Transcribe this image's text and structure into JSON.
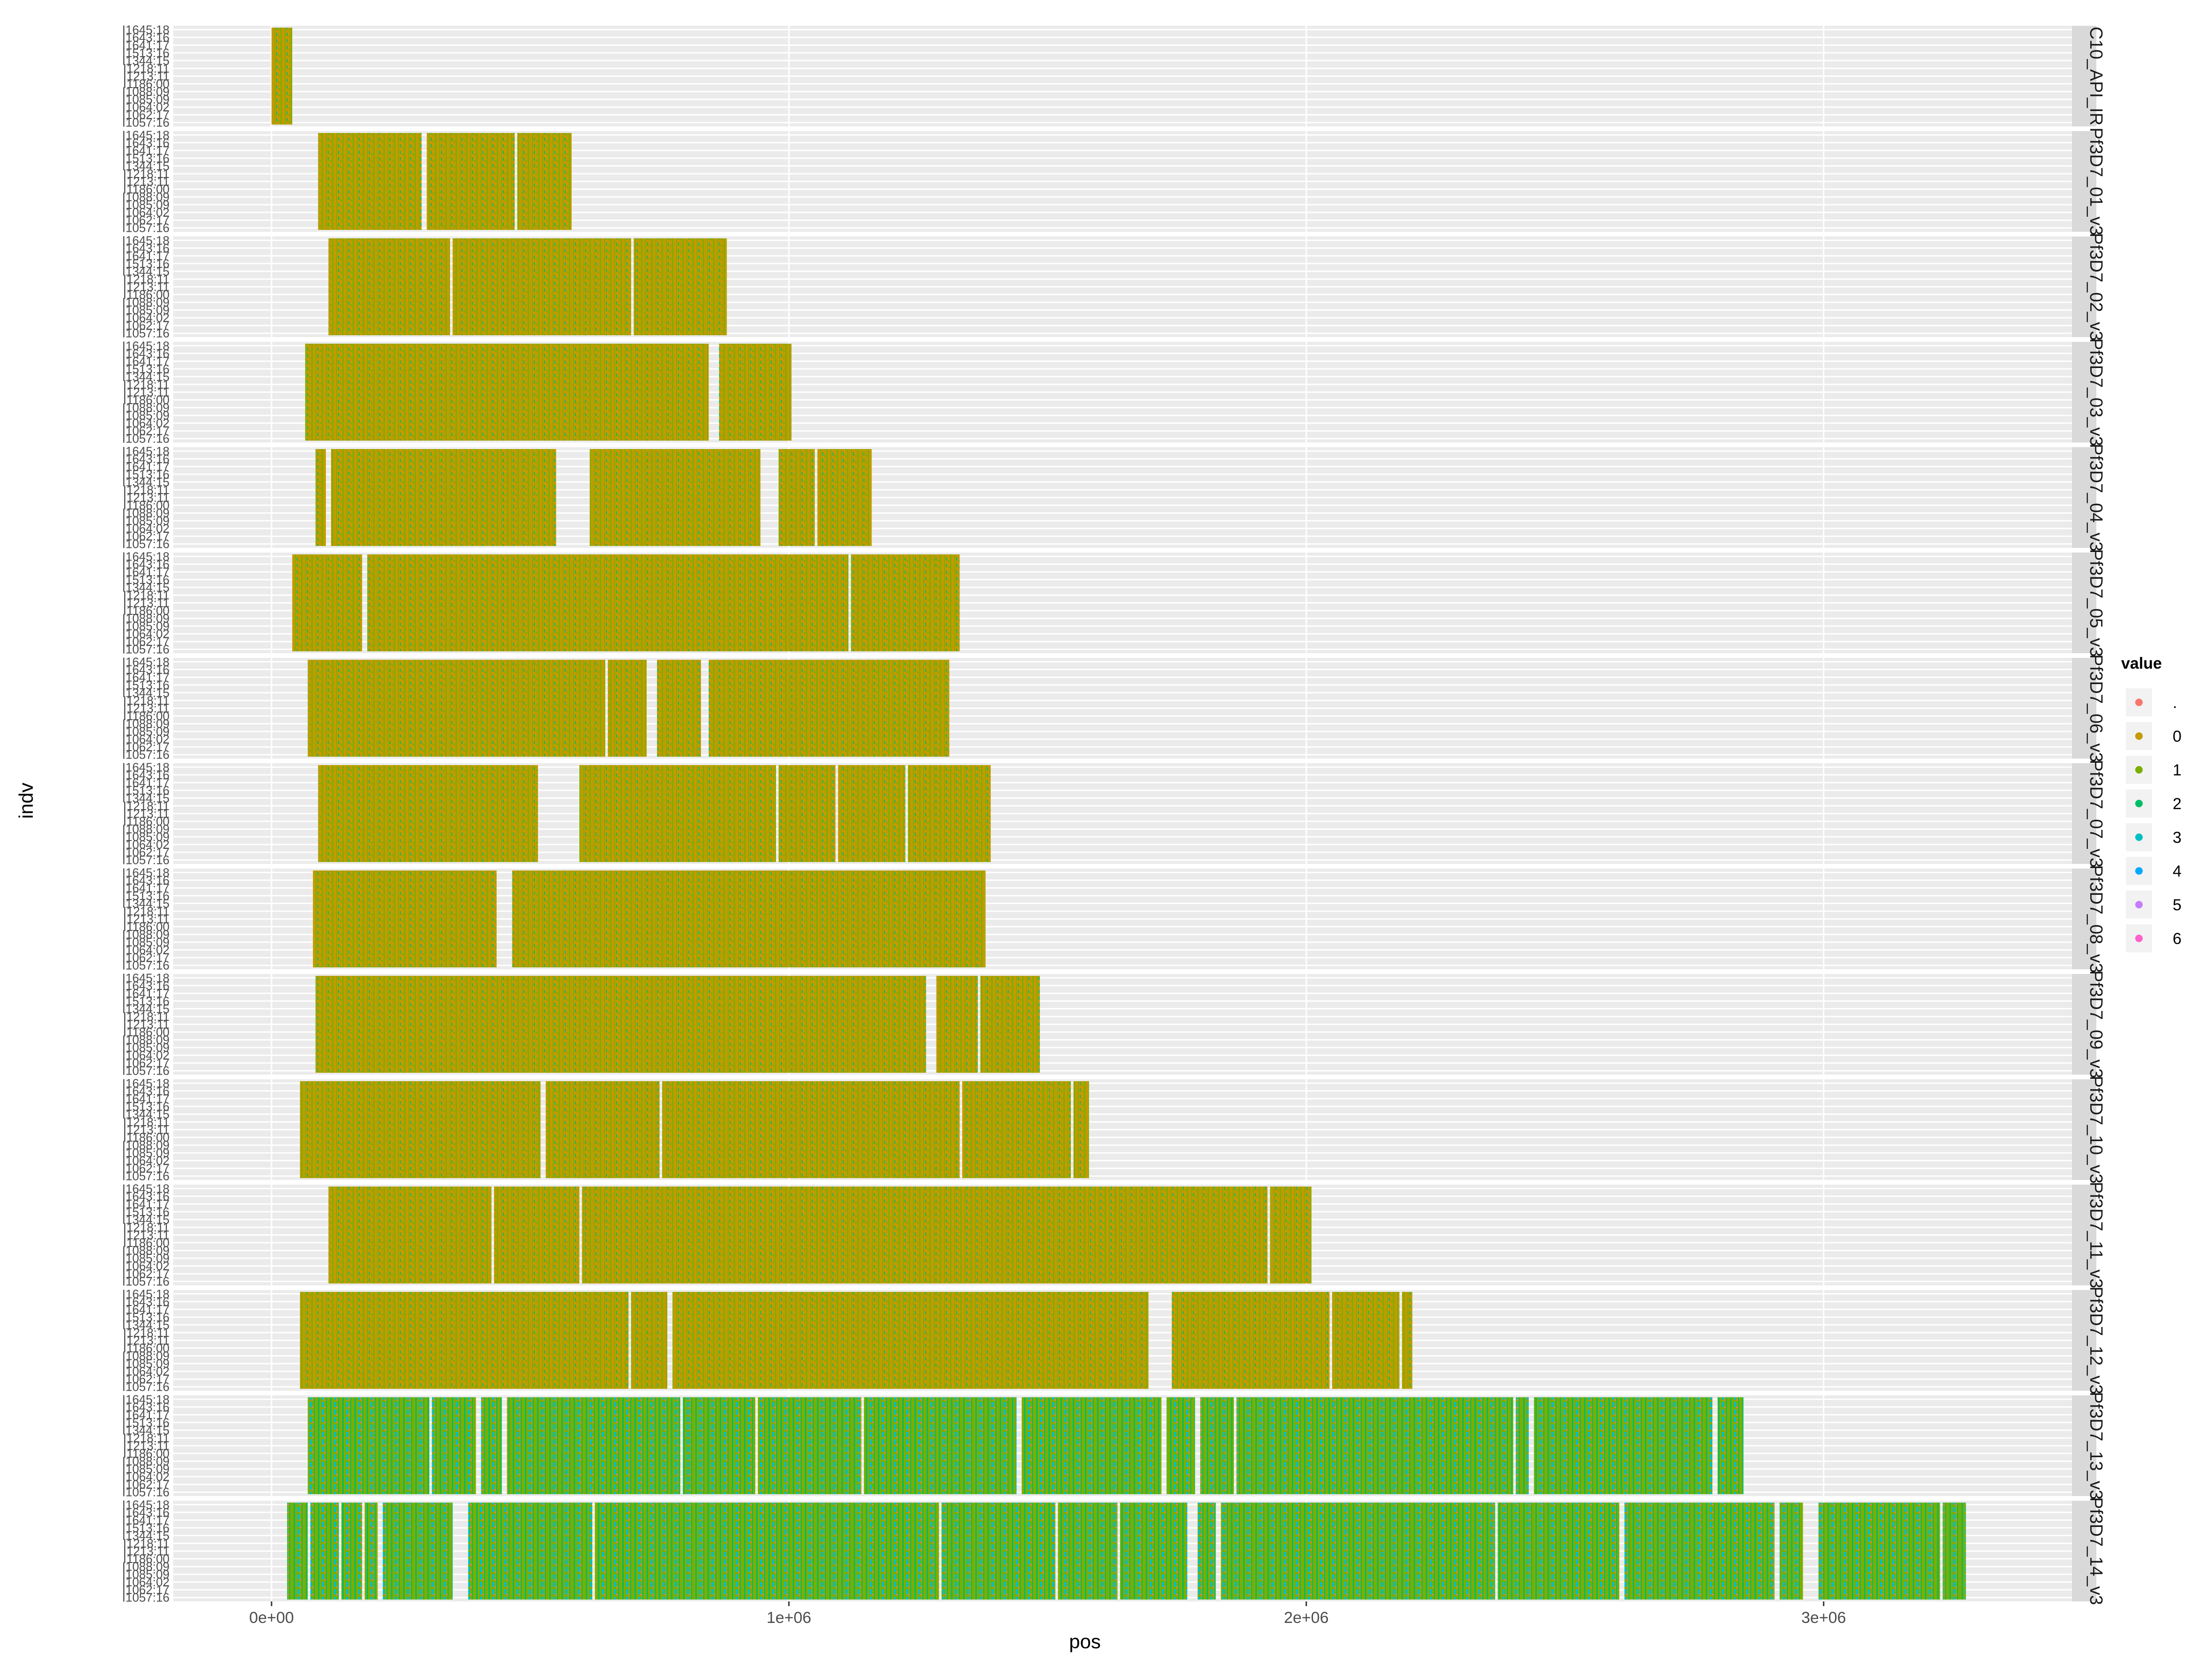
{
  "chart_data": {
    "type": "scatter",
    "title": "",
    "xlabel": "pos",
    "ylabel": "indv",
    "xlim": [
      -190000,
      3480000
    ],
    "x_ticks": [
      {
        "value": 0,
        "label": "0e+00"
      },
      {
        "value": 1000000,
        "label": "1e+06"
      },
      {
        "value": 2000000,
        "label": "2e+06"
      },
      {
        "value": 3000000,
        "label": "3e+06"
      }
    ],
    "row_labels": [
      "I1057:16",
      "I1062:17",
      "I1064:02",
      "I1085:09",
      "I1088:09",
      "I1186:00",
      "I1213:11",
      "I1218:11",
      "I1344:15",
      "I1513:16",
      "I1641:17",
      "I1643:16",
      "I1645:18"
    ],
    "legend": {
      "title": "value",
      "entries": [
        {
          "label": ".",
          "color": "#F8766D"
        },
        {
          "label": "0",
          "color": "#C49A00"
        },
        {
          "label": "1",
          "color": "#7CAE00"
        },
        {
          "label": "2",
          "color": "#00BE67"
        },
        {
          "label": "3",
          "color": "#00BFC4"
        },
        {
          "label": "4",
          "color": "#00A9FF"
        },
        {
          "label": "5",
          "color": "#C77CFF"
        },
        {
          "label": "6",
          "color": "#FF61CC"
        }
      ]
    },
    "panels": [
      {
        "strip": "C10_API_IR",
        "segments": [
          [
            0,
            40000
          ]
        ],
        "dominant": "0"
      },
      {
        "strip": "Pf3D7_01_v3",
        "segments": [
          [
            90000,
            290000
          ],
          [
            300000,
            470000
          ],
          [
            475000,
            580000
          ]
        ],
        "dominant": "0"
      },
      {
        "strip": "Pf3D7_02_v3",
        "segments": [
          [
            110000,
            345000
          ],
          [
            350000,
            695000
          ],
          [
            700000,
            880000
          ]
        ],
        "dominant": "0"
      },
      {
        "strip": "Pf3D7_03_v3",
        "segments": [
          [
            65000,
            845000
          ],
          [
            865000,
            1005000
          ]
        ],
        "dominant": "0"
      },
      {
        "strip": "Pf3D7_04_v3",
        "segments": [
          [
            85000,
            105000
          ],
          [
            115000,
            550000
          ],
          [
            615000,
            945000
          ],
          [
            980000,
            1050000
          ],
          [
            1055000,
            1160000
          ]
        ],
        "dominant": "0"
      },
      {
        "strip": "Pf3D7_05_v3",
        "segments": [
          [
            40000,
            175000
          ],
          [
            185000,
            1115000
          ],
          [
            1120000,
            1330000
          ]
        ],
        "dominant": "0"
      },
      {
        "strip": "Pf3D7_06_v3",
        "segments": [
          [
            70000,
            645000
          ],
          [
            650000,
            725000
          ],
          [
            745000,
            830000
          ],
          [
            845000,
            1310000
          ]
        ],
        "dominant": "0"
      },
      {
        "strip": "Pf3D7_07_v3",
        "segments": [
          [
            90000,
            515000
          ],
          [
            595000,
            975000
          ],
          [
            980000,
            1090000
          ],
          [
            1095000,
            1225000
          ],
          [
            1230000,
            1390000
          ]
        ],
        "dominant": "0"
      },
      {
        "strip": "Pf3D7_08_v3",
        "segments": [
          [
            80000,
            435000
          ],
          [
            465000,
            1380000
          ]
        ],
        "dominant": "0"
      },
      {
        "strip": "Pf3D7_09_v3",
        "segments": [
          [
            85000,
            1265000
          ],
          [
            1285000,
            1365000
          ],
          [
            1370000,
            1485000
          ]
        ],
        "dominant": "0"
      },
      {
        "strip": "Pf3D7_10_v3",
        "segments": [
          [
            55000,
            520000
          ],
          [
            530000,
            750000
          ],
          [
            755000,
            1330000
          ],
          [
            1335000,
            1545000
          ],
          [
            1550000,
            1580000
          ]
        ],
        "dominant": "0"
      },
      {
        "strip": "Pf3D7_11_v3",
        "segments": [
          [
            110000,
            425000
          ],
          [
            430000,
            595000
          ],
          [
            600000,
            1925000
          ],
          [
            1930000,
            2010000
          ]
        ],
        "dominant": "0"
      },
      {
        "strip": "Pf3D7_12_v3",
        "segments": [
          [
            55000,
            690000
          ],
          [
            695000,
            765000
          ],
          [
            775000,
            1695000
          ],
          [
            1740000,
            2045000
          ],
          [
            2050000,
            2180000
          ],
          [
            2185000,
            2205000
          ]
        ],
        "dominant": "0"
      },
      {
        "strip": "Pf3D7_13_v3",
        "segments": [
          [
            70000,
            305000
          ],
          [
            310000,
            395000
          ],
          [
            405000,
            445000
          ],
          [
            455000,
            790000
          ],
          [
            795000,
            935000
          ],
          [
            940000,
            1140000
          ],
          [
            1145000,
            1440000
          ],
          [
            1450000,
            1720000
          ],
          [
            1730000,
            1785000
          ],
          [
            1795000,
            1860000
          ],
          [
            1865000,
            2400000
          ],
          [
            2405000,
            2430000
          ],
          [
            2440000,
            2785000
          ],
          [
            2795000,
            2845000
          ]
        ],
        "dominant": "1"
      },
      {
        "strip": "Pf3D7_14_v3",
        "segments": [
          [
            30000,
            70000
          ],
          [
            75000,
            130000
          ],
          [
            135000,
            175000
          ],
          [
            180000,
            205000
          ],
          [
            215000,
            350000
          ],
          [
            380000,
            620000
          ],
          [
            625000,
            1290000
          ],
          [
            1295000,
            1515000
          ],
          [
            1520000,
            1635000
          ],
          [
            1640000,
            1770000
          ],
          [
            1790000,
            1825000
          ],
          [
            1835000,
            2365000
          ],
          [
            2370000,
            2605000
          ],
          [
            2615000,
            2905000
          ],
          [
            2915000,
            2960000
          ],
          [
            2990000,
            3225000
          ],
          [
            3230000,
            3275000
          ]
        ],
        "dominant": "1"
      }
    ]
  }
}
